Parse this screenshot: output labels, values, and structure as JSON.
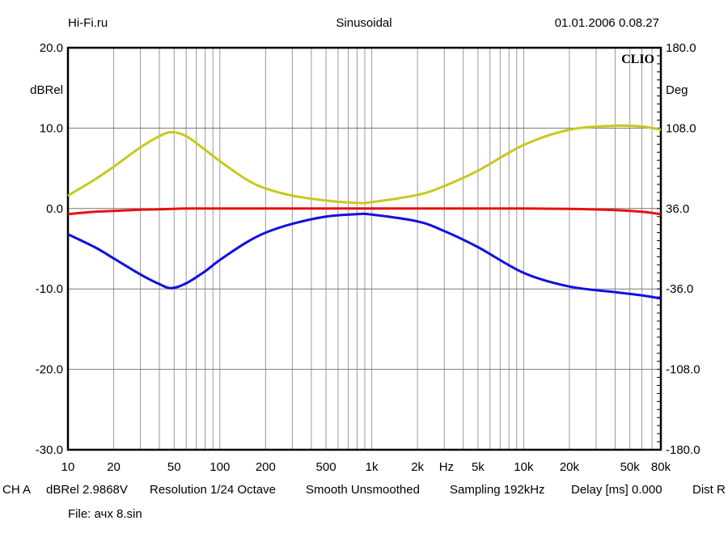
{
  "header": {
    "left": "Hi-Fi.ru",
    "center": "Sinusoidal",
    "right": "01.01.2006 0.08.27"
  },
  "footer": {
    "info_items": [
      "CH A",
      "dBRel 2.9868V",
      "Resolution 1/24 Octave",
      "Smooth Unsmoothed",
      "Sampling 192kHz",
      "Delay [ms] 0.000",
      "Dist R"
    ],
    "file": "File: ачх 8.sin"
  },
  "chart_data": {
    "type": "line",
    "title": "Sinusoidal",
    "logo": "CLIO",
    "xlabel": "Hz",
    "ylabel": "dBRel",
    "y2label": "Deg",
    "xscale": "log",
    "xlim": [
      10,
      80000
    ],
    "ylim": [
      -30,
      20
    ],
    "y2lim": [
      -180,
      180
    ],
    "grid": true,
    "x_ticks": [
      10,
      20,
      50,
      100,
      200,
      500,
      1000,
      2000,
      5000,
      10000,
      20000,
      50000,
      80000
    ],
    "x_tick_labels": [
      "10",
      "20",
      "50",
      "100",
      "200",
      "500",
      "1k",
      "2k",
      "5k",
      "10k",
      "20k",
      "50k",
      "80k"
    ],
    "y_ticks": [
      20,
      10,
      0,
      -10,
      -20,
      -30
    ],
    "y_tick_labels": [
      "20.0",
      "10.0",
      "0.0",
      "-10.0",
      "-20.0",
      "-30.0"
    ],
    "y2_tick_labels": [
      "180.0",
      "108.0",
      "36.0",
      "-36.0",
      "-108.0",
      "-180.0"
    ],
    "x": [
      10,
      15,
      20,
      30,
      40,
      48,
      60,
      80,
      100,
      150,
      200,
      300,
      500,
      800,
      1000,
      2000,
      3000,
      5000,
      10000,
      20000,
      40000,
      60000,
      80000
    ],
    "series": [
      {
        "name": "yellow",
        "color": "#c8c820",
        "values": [
          1.6,
          3.6,
          5.2,
          7.6,
          9.0,
          9.5,
          9.0,
          7.3,
          5.9,
          3.6,
          2.5,
          1.6,
          1.0,
          0.7,
          0.8,
          1.7,
          2.8,
          4.7,
          7.9,
          9.8,
          10.3,
          10.2,
          9.8
        ]
      },
      {
        "name": "red",
        "color": "#e81010",
        "values": [
          -0.7,
          -0.4,
          -0.3,
          -0.15,
          -0.1,
          -0.05,
          0,
          0,
          0,
          0,
          0,
          0,
          0,
          0,
          0,
          0,
          0,
          0,
          0,
          -0.05,
          -0.2,
          -0.4,
          -0.7
        ]
      },
      {
        "name": "blue",
        "color": "#1010e0",
        "values": [
          -3.2,
          -4.8,
          -6.2,
          -8.2,
          -9.4,
          -9.9,
          -9.3,
          -7.8,
          -6.4,
          -4.2,
          -3.0,
          -1.9,
          -1.0,
          -0.7,
          -0.75,
          -1.6,
          -2.8,
          -4.8,
          -8.0,
          -9.7,
          -10.4,
          -10.8,
          -11.2
        ]
      }
    ]
  }
}
